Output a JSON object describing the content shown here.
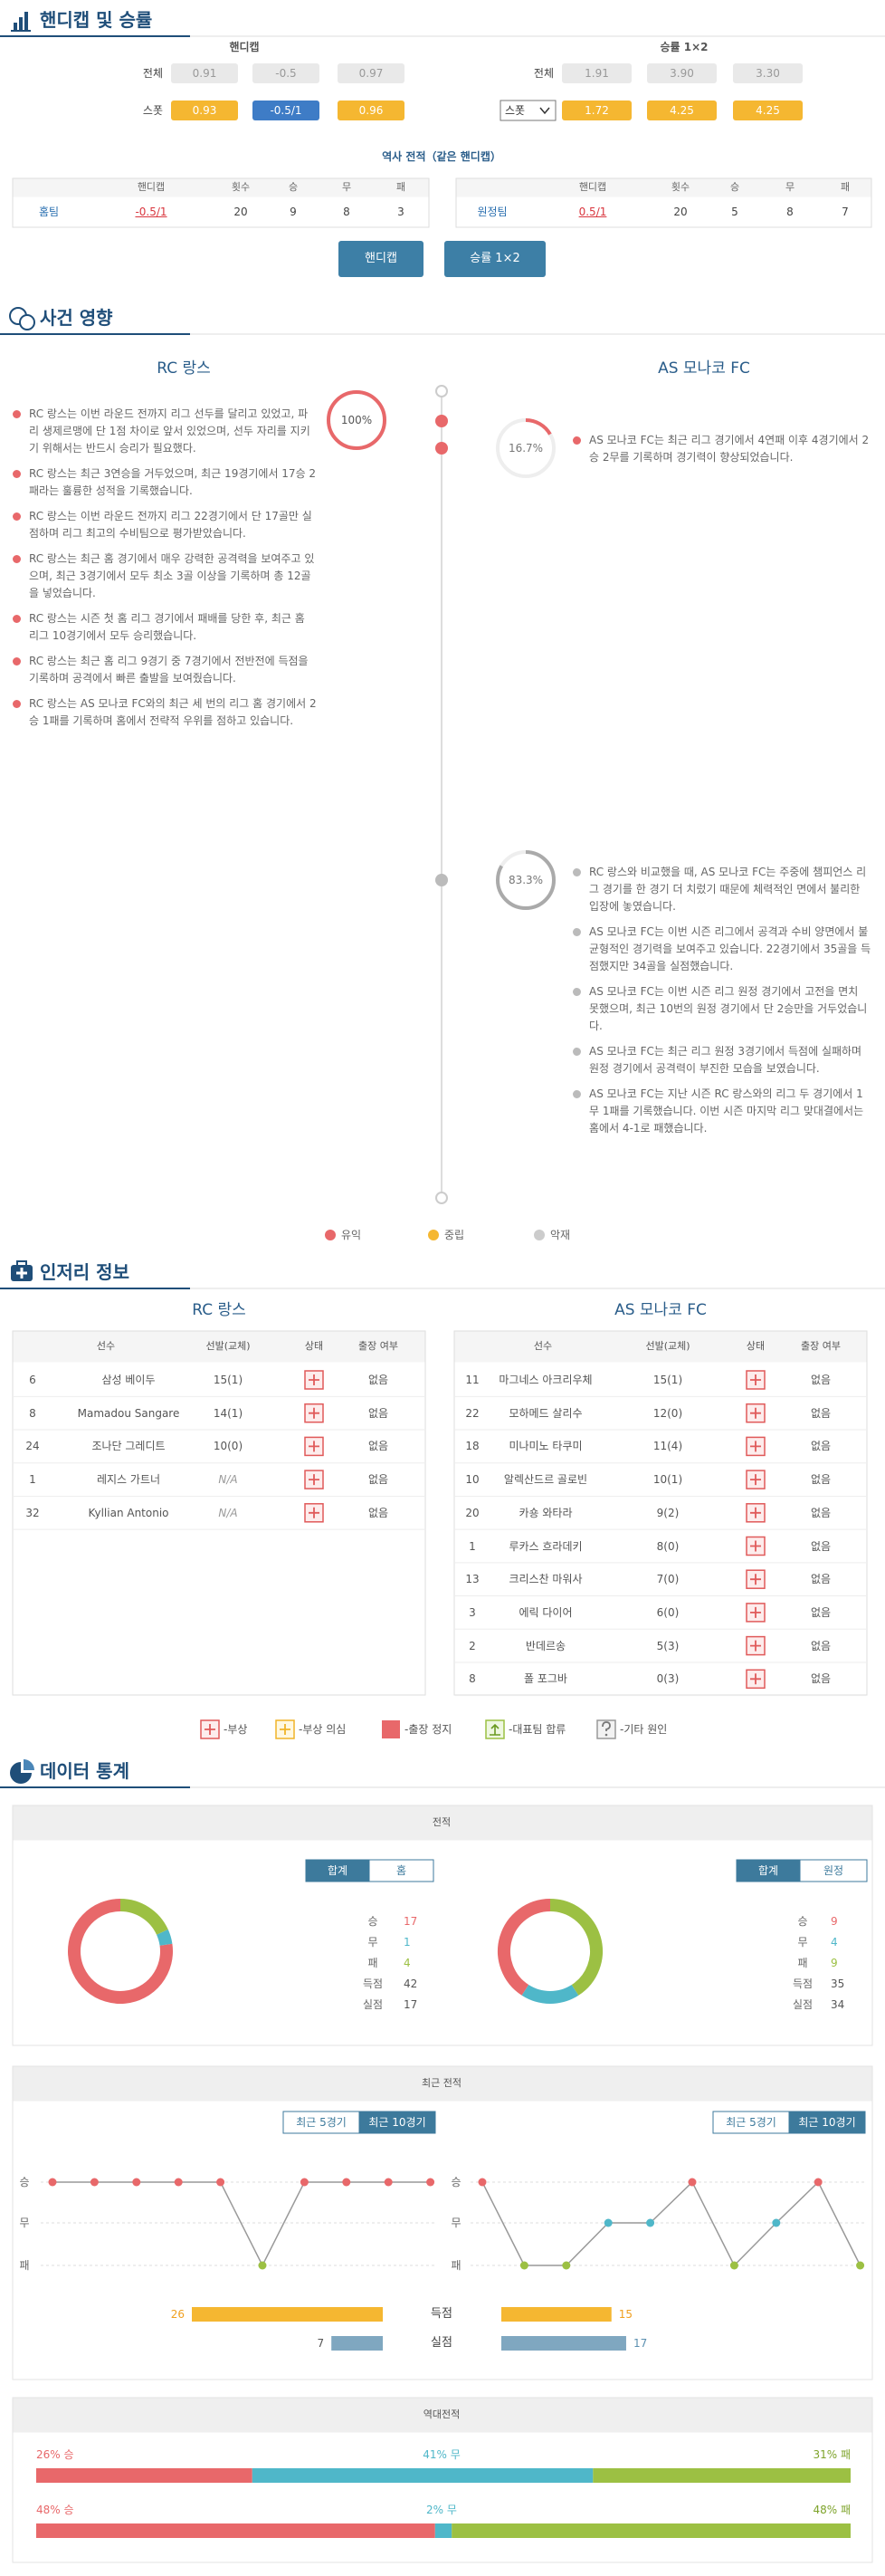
{
  "handicap_section": {
    "title": "핸디캡 및 승률",
    "handicap": {
      "title": "핸디캡",
      "rows": [
        {
          "label": "전체",
          "values": [
            "0.91",
            "-0.5",
            "0.97"
          ]
        },
        {
          "label": "스폿",
          "values": [
            "0.93",
            "-0.5/1",
            "0.96"
          ]
        }
      ]
    },
    "win_rate": {
      "title": "승률 1×2",
      "rows": [
        {
          "label": "전체",
          "values": [
            "1.91",
            "3.90",
            "3.30"
          ]
        },
        {
          "label": "스폿",
          "values": [
            "1.72",
            "4.25",
            "4.25"
          ]
        }
      ]
    },
    "history": {
      "title": "역사 전적（같은 핸디캡）",
      "headers": [
        "핸디캡",
        "횟수",
        "승",
        "무",
        "패"
      ],
      "home": {
        "team": "홈팀",
        "values": [
          "-0.5/1",
          "20",
          "9",
          "8",
          "3"
        ]
      },
      "away": {
        "team": "원정팀",
        "values": [
          "0.5/1",
          "20",
          "5",
          "8",
          "7"
        ]
      }
    },
    "buttons": [
      "핸디캡",
      "승률 1×2"
    ]
  },
  "events": {
    "title": "사건 영향",
    "home_team": "RC 랑스",
    "away_team": "AS 모나코 FC",
    "home_positive": {
      "percent": {
        "value": 100,
        "label": "100%"
      },
      "items": [
        "RC 랑스는 이번 라운드 전까지 리그 선두를 달리고 있었고, 파리 생제르맹에 단 1점 차이로 앞서 있었으며, 선두 자리를 지키기 위해서는 반드시 승리가 필요했다.",
        "RC 랑스는 최근 3연승을 거두었으며, 최근 19경기에서 17승 2패라는 훌륭한 성적을 기록했습니다.",
        "RC 랑스는 이번 라운드 전까지 리그 22경기에서 단 17골만 실점하며 리그 최고의 수비팀으로 평가받았습니다.",
        "RC 랑스는 최근 홈 경기에서 매우 강력한 공격력을 보여주고 있으며, 최근 3경기에서 모두 최소 3골 이상을 기록하며 총 12골을 넣었습니다.",
        "RC 랑스는 시즌 첫 홈 리그 경기에서 패배를 당한 후, 최근 홈 리그 10경기에서 모두 승리했습니다.",
        "RC 랑스는 최근 홈 리그 9경기 중 7경기에서 전반전에 득점을 기록하며 공격에서 빠른 출발을 보여줬습니다.",
        "RC 랑스는 AS 모나코 FC와의 최근 세 번의 리그 홈 경기에서 2승 1패를 기록하며 홈에서 전략적 우위를 점하고 있습니다."
      ]
    },
    "away_positive": {
      "percent": {
        "value": 16.7,
        "label": "16.7%"
      },
      "items": [
        "AS 모나코 FC는 최근 리그 경기에서 4연패 이후 4경기에서 2승 2무를 기록하며 경기력이 향상되었습니다."
      ]
    },
    "away_negative": {
      "percent": {
        "value": 83.3,
        "label": "83.3%"
      },
      "items": [
        "RC 랑스와 비교했을 때, AS 모나코 FC는 주중에 챔피언스 리그 경기를 한 경기 더 치렀기 때문에 체력적인 면에서 불리한 입장에 놓였습니다.",
        "AS 모나코 FC는 이번 시즌 리그에서 공격과 수비 양면에서 불균형적인 경기력을 보여주고 있습니다. 22경기에서 35골을 득점했지만 34골을 실점했습니다.",
        "AS 모나코 FC는 이번 시즌 리그 원정 경기에서 고전을 면치 못했으며, 최근 10번의 원정 경기에서 단 2승만을 거두었습니다.",
        "AS 모나코 FC는 최근 리그 원정 3경기에서 득점에 실패하며 원정 경기에서 공격력이 부진한 모습을 보였습니다.",
        "AS 모나코 FC는 지난 시즌 RC 랑스와의 리그 두 경기에서 1무 1패를 기록했습니다. 이번 시즌 마지막 리그 맞대결에서는 홈에서 4-1로 패했습니다."
      ]
    },
    "legend": [
      "유익",
      "중립",
      "악재"
    ]
  },
  "injuries": {
    "title": "인저리 정보",
    "headers": [
      "선수",
      "선발(교체)",
      "상태",
      "출장 여부"
    ],
    "home": {
      "team": "RC 랑스",
      "rows": [
        [
          "6",
          "삼성 베이두",
          "15(1)",
          "없음"
        ],
        [
          "8",
          "Mamadou Sangare",
          "14(1)",
          "없음"
        ],
        [
          "24",
          "조나단 그레디트",
          "10(0)",
          "없음"
        ],
        [
          "1",
          "레지스 가트너",
          "N/A",
          "없음"
        ],
        [
          "32",
          "Kyllian Antonio",
          "N/A",
          "없음"
        ]
      ]
    },
    "away": {
      "team": "AS 모나코 FC",
      "rows": [
        [
          "11",
          "마그네스 아크리우체",
          "15(1)",
          "없음"
        ],
        [
          "22",
          "모하메드 살리수",
          "12(0)",
          "없음"
        ],
        [
          "18",
          "미나미노 타쿠미",
          "11(4)",
          "없음"
        ],
        [
          "10",
          "알렉산드르 골로빈",
          "10(1)",
          "없음"
        ],
        [
          "20",
          "카숑 와타라",
          "9(2)",
          "없음"
        ],
        [
          "1",
          "루카스 흐라데키",
          "8(0)",
          "없음"
        ],
        [
          "13",
          "크리스찬 마워사",
          "7(0)",
          "없음"
        ],
        [
          "3",
          "에릭 다이어",
          "6(0)",
          "없음"
        ],
        [
          "2",
          "반데르송",
          "5(3)",
          "없음"
        ],
        [
          "8",
          "폴 포그바",
          "0(3)",
          "없음"
        ]
      ]
    },
    "legend": [
      "-부상",
      "-부상 의심",
      "-출장 정지",
      "-대표팀 합류",
      "-기타 원인"
    ]
  },
  "stats": {
    "title": "데이터 통계",
    "record": {
      "title": "전적",
      "labels": [
        "승",
        "무",
        "패",
        "득점",
        "실점"
      ],
      "home": {
        "tabs": [
          "합계",
          "홈"
        ],
        "values": [
          17,
          1,
          4,
          42,
          17
        ]
      },
      "away": {
        "tabs": [
          "합계",
          "원정"
        ],
        "values": [
          9,
          4,
          9,
          35,
          34
        ]
      }
    },
    "recent": {
      "title": "최근 전적",
      "tabs": [
        "최근 5경기",
        "최근 10경기"
      ],
      "levels": [
        "승",
        "무",
        "패"
      ],
      "home": [
        "승",
        "승",
        "승",
        "승",
        "승",
        "패",
        "승",
        "승",
        "승",
        "승"
      ],
      "away": [
        "승",
        "패",
        "패",
        "무",
        "무",
        "승",
        "패",
        "무",
        "승",
        "패"
      ],
      "bars": [
        {
          "label": "득점",
          "home": 26,
          "away": 15
        },
        {
          "label": "실점",
          "home": 7,
          "away": 17
        }
      ]
    },
    "head_to_head": {
      "title": "역대전적",
      "rows": [
        [
          {
            "value": 26,
            "label": "26% 승"
          },
          {
            "value": 41,
            "label": "41% 무"
          },
          {
            "value": 31,
            "label": "31% 패"
          }
        ],
        [
          {
            "value": 48,
            "label": "48% 승"
          },
          {
            "value": 2,
            "label": "2% 무"
          },
          {
            "value": 48,
            "label": "48% 패"
          }
        ]
      ]
    }
  }
}
